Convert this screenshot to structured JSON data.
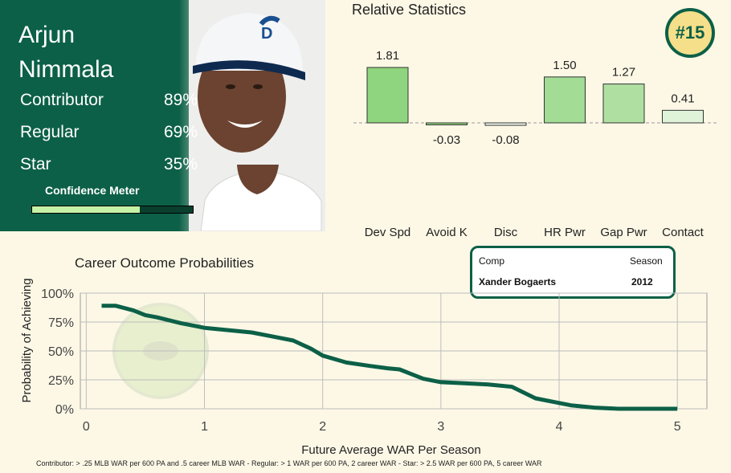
{
  "player": {
    "first_name": "Arjun",
    "last_name": "Nimmala",
    "rank": "#15",
    "stats": [
      {
        "label": "Contributor",
        "value": "89%"
      },
      {
        "label": "Regular",
        "value": "69%"
      },
      {
        "label": "Star",
        "value": "35%"
      }
    ],
    "confidence_label": "Confidence Meter",
    "confidence_level": 0.67
  },
  "comp": {
    "header_comp": "Comp",
    "header_season": "Season",
    "name": "Xander Bogaerts",
    "season": "2012"
  },
  "footnote": "Contributor: > .25 MLB WAR per 600 PA and .5 career MLB WAR - Regular: > 1 WAR per 600 PA, 2 career WAR - Star: > 2.5 WAR per 600 PA, 5 career WAR",
  "colors": {
    "brand": "#0c6047",
    "badge": "#f6df8a"
  },
  "chart_data": [
    {
      "type": "bar",
      "title": "Relative Statistics",
      "categories": [
        "Dev Spd",
        "Avoid K",
        "Disc",
        "HR Pwr",
        "Gap Pwr",
        "Contact"
      ],
      "values": [
        1.81,
        -0.03,
        -0.08,
        1.5,
        1.27,
        0.41
      ],
      "value_labels": [
        "1.81",
        "-0.03",
        "-0.08",
        "1.50",
        "1.27",
        "0.41"
      ],
      "baseline": 0,
      "ylim": [
        -0.08,
        1.81
      ]
    },
    {
      "type": "line",
      "title": "Career Outcome Probabilities",
      "xlabel": "Future Average WAR Per Season",
      "ylabel": "Probability of Achieving",
      "xlim": [
        -0.05,
        5.25
      ],
      "ylim": [
        0,
        1
      ],
      "xticks": [
        0,
        1,
        2,
        3,
        4,
        5
      ],
      "xtick_labels": [
        "0",
        "1",
        "2",
        "3",
        "4",
        "5"
      ],
      "yticks": [
        0,
        0.25,
        0.5,
        0.75,
        1
      ],
      "ytick_labels": [
        "0%",
        "25%",
        "50%",
        "75%",
        "100%"
      ],
      "grid": true,
      "x": [
        0.13,
        0.25,
        0.4,
        0.5,
        0.6,
        0.8,
        1.0,
        1.2,
        1.4,
        1.6,
        1.75,
        1.9,
        2.0,
        2.2,
        2.4,
        2.55,
        2.65,
        2.75,
        2.85,
        3.0,
        3.2,
        3.4,
        3.6,
        3.8,
        4.0,
        4.1,
        4.3,
        4.5,
        5.0
      ],
      "y": [
        0.89,
        0.89,
        0.85,
        0.81,
        0.79,
        0.74,
        0.7,
        0.68,
        0.66,
        0.62,
        0.59,
        0.52,
        0.46,
        0.4,
        0.37,
        0.35,
        0.34,
        0.3,
        0.26,
        0.23,
        0.22,
        0.21,
        0.19,
        0.09,
        0.05,
        0.03,
        0.01,
        0.0,
        0.0
      ]
    }
  ]
}
